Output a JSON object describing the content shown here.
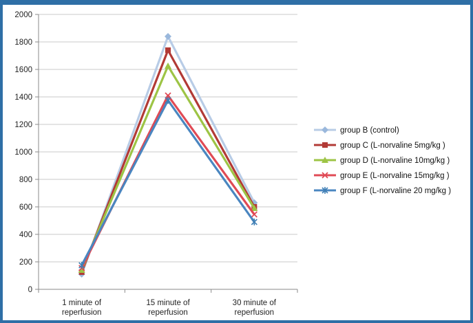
{
  "chart_data": {
    "type": "line",
    "title": "",
    "xlabel": "",
    "ylabel": "",
    "ylim": [
      0,
      2000
    ],
    "y_ticks": [
      "0",
      "200",
      "400",
      "600",
      "800",
      "1000",
      "1200",
      "1400",
      "1600",
      "1800",
      "2000"
    ],
    "categories": [
      [
        "1 minute of",
        "reperfusion"
      ],
      [
        "15 minute of",
        "reperfusion"
      ],
      [
        "30 minute of",
        "reperfusion"
      ]
    ],
    "grid": true,
    "legend_position": "right",
    "series": [
      {
        "name": "group B (control)",
        "values": [
          110,
          1840,
          630
        ],
        "color": "#9ab8dc",
        "line_color": "#b8cce6",
        "marker": "diamond"
      },
      {
        "name": "group C (L-norvaline 5mg/kg )",
        "values": [
          125,
          1740,
          600
        ],
        "color": "#b23a36",
        "line_color": "#b23a36",
        "marker": "square"
      },
      {
        "name": "group D (L-norvaline 10mg/kg )",
        "values": [
          140,
          1625,
          590
        ],
        "color": "#9dc445",
        "line_color": "#9dc445",
        "marker": "triangle"
      },
      {
        "name": "group E (L-norvaline 15mg/kg )",
        "values": [
          155,
          1410,
          545
        ],
        "color": "#e04a55",
        "line_color": "#e04a55",
        "marker": "x"
      },
      {
        "name": "group F (L-norvaline 20 mg/kg )",
        "values": [
          175,
          1375,
          490
        ],
        "color": "#3f7fb5",
        "line_color": "#4a86c0",
        "marker": "star"
      }
    ]
  }
}
